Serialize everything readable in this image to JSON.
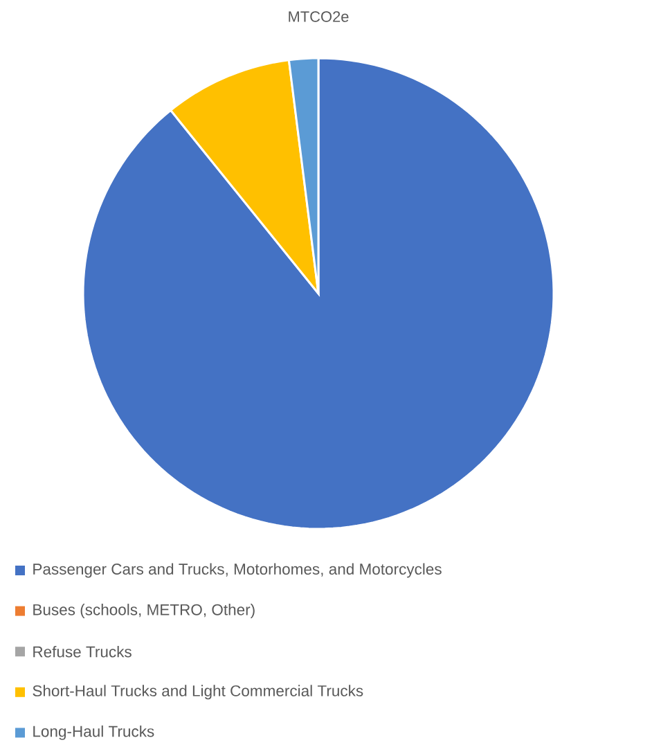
{
  "chart_data": {
    "type": "pie",
    "title": "MTCO2e",
    "categories": [
      "Passenger Cars and Trucks, Motorhomes, and Motorcycles",
      "Buses (schools, METRO, Other)",
      "Refuse Trucks",
      "Short-Haul Trucks and Light Commercial Trucks",
      "Long-Haul Trucks"
    ],
    "values": [
      89.2,
      null,
      null,
      8.8,
      2.0
    ],
    "colors": [
      "#4472c4",
      "#ed7d31",
      "#a5a5a5",
      "#ffc000",
      "#5b9bd5"
    ],
    "legend": "bottom"
  }
}
